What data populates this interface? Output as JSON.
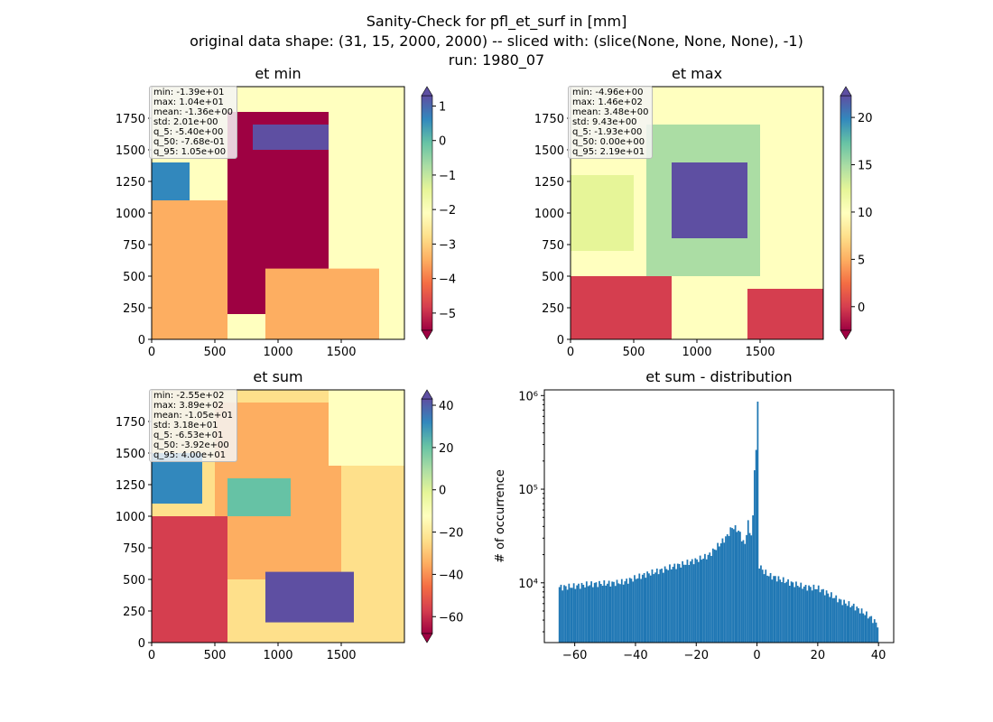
{
  "figure": {
    "suptitle": [
      "Sanity-Check for pfl_et_surf in [mm]",
      "original data shape: (31, 15, 2000, 2000) -- sliced with: (slice(None, None, None), -1)",
      "run: 1980_07"
    ]
  },
  "colors": {
    "histogram_bar": "#1f77b4",
    "spectral": [
      "#9e0142",
      "#d53e4f",
      "#f46d43",
      "#fdae61",
      "#fee08b",
      "#ffffbf",
      "#e6f598",
      "#abdda4",
      "#66c2a5",
      "#3288bd",
      "#5e4fa2"
    ]
  },
  "chart_data": [
    {
      "type": "heatmap",
      "title": "et min",
      "colormap": "Spectral",
      "xticks": [
        "0",
        "500",
        "1000",
        "1500"
      ],
      "yticks": [
        "0",
        "250",
        "500",
        "750",
        "1000",
        "1250",
        "1500",
        "1750"
      ],
      "xlim": [
        0,
        2000
      ],
      "ylim": [
        0,
        2000
      ],
      "colorbar": {
        "vmin": -5.5,
        "vmax": 1.3,
        "ticks": [
          "1",
          "0",
          "−1",
          "−2",
          "−3",
          "−4",
          "−5"
        ],
        "tick_values": [
          1,
          0,
          -1,
          -2,
          -3,
          -4,
          -5
        ],
        "extend": "both"
      },
      "stats": [
        "min: -1.39e+01",
        "max: 1.04e+01",
        "mean: -1.36e+00",
        "std: 2.01e+00",
        "q_5: -5.40e+00",
        "q_50: -7.68e-01",
        "q_95: 1.05e+00"
      ]
    },
    {
      "type": "heatmap",
      "title": "et max",
      "colormap": "Spectral",
      "xticks": [
        "0",
        "500",
        "1000",
        "1500"
      ],
      "yticks": [
        "0",
        "250",
        "500",
        "750",
        "1000",
        "1250",
        "1500",
        "1750"
      ],
      "xlim": [
        0,
        2000
      ],
      "ylim": [
        0,
        2000
      ],
      "colorbar": {
        "vmin": -2.5,
        "vmax": 22.3,
        "ticks": [
          "20",
          "15",
          "10",
          "5",
          "0"
        ],
        "tick_values": [
          20,
          15,
          10,
          5,
          0
        ],
        "extend": "both"
      },
      "stats": [
        "min: -4.96e+00",
        "max: 1.46e+02",
        "mean: 3.48e+00",
        "std: 9.43e+00",
        "q_5: -1.93e+00",
        "q_50: 0.00e+00",
        "q_95: 2.19e+01"
      ]
    },
    {
      "type": "heatmap",
      "title": "et sum",
      "colormap": "Spectral",
      "xticks": [
        "0",
        "500",
        "1000",
        "1500"
      ],
      "yticks": [
        "0",
        "250",
        "500",
        "750",
        "1000",
        "1250",
        "1500",
        "1750"
      ],
      "xlim": [
        0,
        2000
      ],
      "ylim": [
        0,
        2000
      ],
      "colorbar": {
        "vmin": -68,
        "vmax": 43,
        "ticks": [
          "40",
          "20",
          "0",
          "−20",
          "−40",
          "−60"
        ],
        "tick_values": [
          40,
          20,
          0,
          -20,
          -40,
          -60
        ],
        "extend": "both"
      },
      "stats": [
        "min: -2.55e+02",
        "max: 3.89e+02",
        "mean: -1.05e+01",
        "std: 3.18e+01",
        "q_5: -6.53e+01",
        "q_50: -3.92e+00",
        "q_95: 4.00e+01"
      ]
    },
    {
      "type": "bar",
      "title": "et sum - distribution",
      "ylabel": "# of occurrence",
      "yscale": "log",
      "xlim": [
        -70,
        45
      ],
      "ylim": [
        2300,
        1150000
      ],
      "xticks": [
        "−60",
        "−40",
        "−20",
        "0",
        "20",
        "40"
      ],
      "xtick_values": [
        -60,
        -40,
        -20,
        0,
        20,
        40
      ],
      "yticks": [
        "10⁴",
        "10⁵",
        "10⁶"
      ],
      "ytick_values": [
        10000,
        100000,
        1000000
      ],
      "bin_range": [
        -65.3,
        40.0
      ],
      "series": [
        {
          "x": [
            -64,
            -60,
            -56,
            -52,
            -48,
            -44,
            -40,
            -36,
            -32,
            -28,
            -24,
            -20,
            -16,
            -12,
            -10,
            -8,
            -6,
            -4,
            -3,
            -2,
            -1,
            -0.5,
            0,
            0.5,
            1,
            2,
            4,
            8,
            12,
            16,
            20,
            24,
            28,
            32,
            36,
            38,
            40
          ],
          "values": [
            9000,
            9200,
            9600,
            9800,
            9900,
            10200,
            11300,
            12500,
            13500,
            14800,
            16000,
            17500,
            19500,
            26500,
            31000,
            40000,
            36000,
            25000,
            45000,
            30000,
            62000,
            820000,
            62000,
            16000,
            15000,
            13500,
            12000,
            10800,
            9800,
            9000,
            8800,
            7500,
            6300,
            5600,
            4600,
            4100,
            3500
          ]
        }
      ]
    }
  ]
}
